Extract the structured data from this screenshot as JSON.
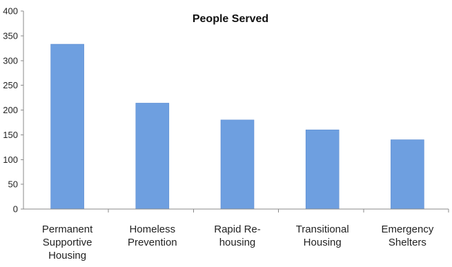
{
  "chart_data": {
    "type": "bar",
    "title": "People Served",
    "xlabel": "",
    "ylabel": "",
    "categories": [
      [
        "Permanent",
        "Supportive",
        "Housing"
      ],
      [
        "Homeless",
        "Prevention"
      ],
      [
        "Rapid Re-",
        "housing"
      ],
      [
        "Transitional",
        "Housing"
      ],
      [
        "Emergency",
        "Shelters"
      ]
    ],
    "values": [
      333,
      214,
      180,
      160,
      140
    ],
    "ylim": [
      0,
      400
    ],
    "yticks": [
      0,
      50,
      100,
      150,
      200,
      250,
      300,
      350,
      400
    ],
    "grid": false,
    "legend": "none",
    "bar_color": "#6e9fe0",
    "bar_edge_color": "#5b8bd0"
  }
}
